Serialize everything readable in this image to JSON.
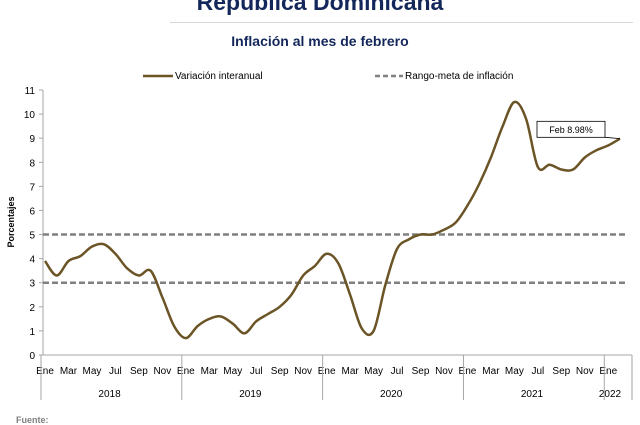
{
  "header": {
    "title": "República Dominicana",
    "subtitle": "Inflación al mes de febrero",
    "source": "Fuente:"
  },
  "chart_data": {
    "type": "line",
    "ylabel": "Porcentajes",
    "ylim": [
      0,
      11
    ],
    "yticks": [
      0,
      1,
      2,
      3,
      4,
      5,
      6,
      7,
      8,
      9,
      10,
      11
    ],
    "month_labels": [
      "Ene",
      "Mar",
      "May",
      "Jul",
      "Sep",
      "Nov",
      "Ene",
      "Mar",
      "May",
      "Jul",
      "Sep",
      "Nov",
      "Ene",
      "Mar",
      "May",
      "Jul",
      "Sep",
      "Nov",
      "Ene",
      "Mar",
      "May",
      "Jul",
      "Sep",
      "Nov",
      "Ene"
    ],
    "year_labels": [
      "2018",
      "2019",
      "2020",
      "2021",
      "2022"
    ],
    "legend": [
      "Variación interanual",
      "Rango-meta de inflación"
    ],
    "legend_position": "top",
    "grid": false,
    "colors": {
      "series": "#6b5426",
      "target": "#808080",
      "title": "#13275a",
      "axis": "#a6a6a6"
    },
    "series": [
      {
        "name": "Variación interanual",
        "style": "line",
        "x": [
          "2018-01",
          "2018-02",
          "2018-03",
          "2018-04",
          "2018-05",
          "2018-06",
          "2018-07",
          "2018-08",
          "2018-09",
          "2018-10",
          "2018-11",
          "2018-12",
          "2019-01",
          "2019-02",
          "2019-03",
          "2019-04",
          "2019-05",
          "2019-06",
          "2019-07",
          "2019-08",
          "2019-09",
          "2019-10",
          "2019-11",
          "2019-12",
          "2020-01",
          "2020-02",
          "2020-03",
          "2020-04",
          "2020-05",
          "2020-06",
          "2020-07",
          "2020-08",
          "2020-09",
          "2020-10",
          "2020-11",
          "2020-12",
          "2021-01",
          "2021-02",
          "2021-03",
          "2021-04",
          "2021-05",
          "2021-06",
          "2021-07",
          "2021-08",
          "2021-09",
          "2021-10",
          "2021-11",
          "2021-12",
          "2022-01",
          "2022-02"
        ],
        "values": [
          3.9,
          3.3,
          3.9,
          4.1,
          4.5,
          4.6,
          4.2,
          3.6,
          3.3,
          3.5,
          2.4,
          1.2,
          0.7,
          1.2,
          1.5,
          1.6,
          1.3,
          0.9,
          1.4,
          1.7,
          2.0,
          2.5,
          3.3,
          3.7,
          4.2,
          3.8,
          2.5,
          1.1,
          1.0,
          2.9,
          4.4,
          4.8,
          5.0,
          5.0,
          5.2,
          5.5,
          6.2,
          7.1,
          8.2,
          9.5,
          10.5,
          9.8,
          7.8,
          7.9,
          7.7,
          7.7,
          8.2,
          8.5,
          8.7,
          8.98
        ]
      },
      {
        "name": "Rango-meta de inflación",
        "style": "dashed",
        "lines": [
          3,
          5
        ]
      }
    ],
    "annotation": {
      "text": "Feb 8.98%",
      "x": "2022-02",
      "y": 8.98
    }
  }
}
